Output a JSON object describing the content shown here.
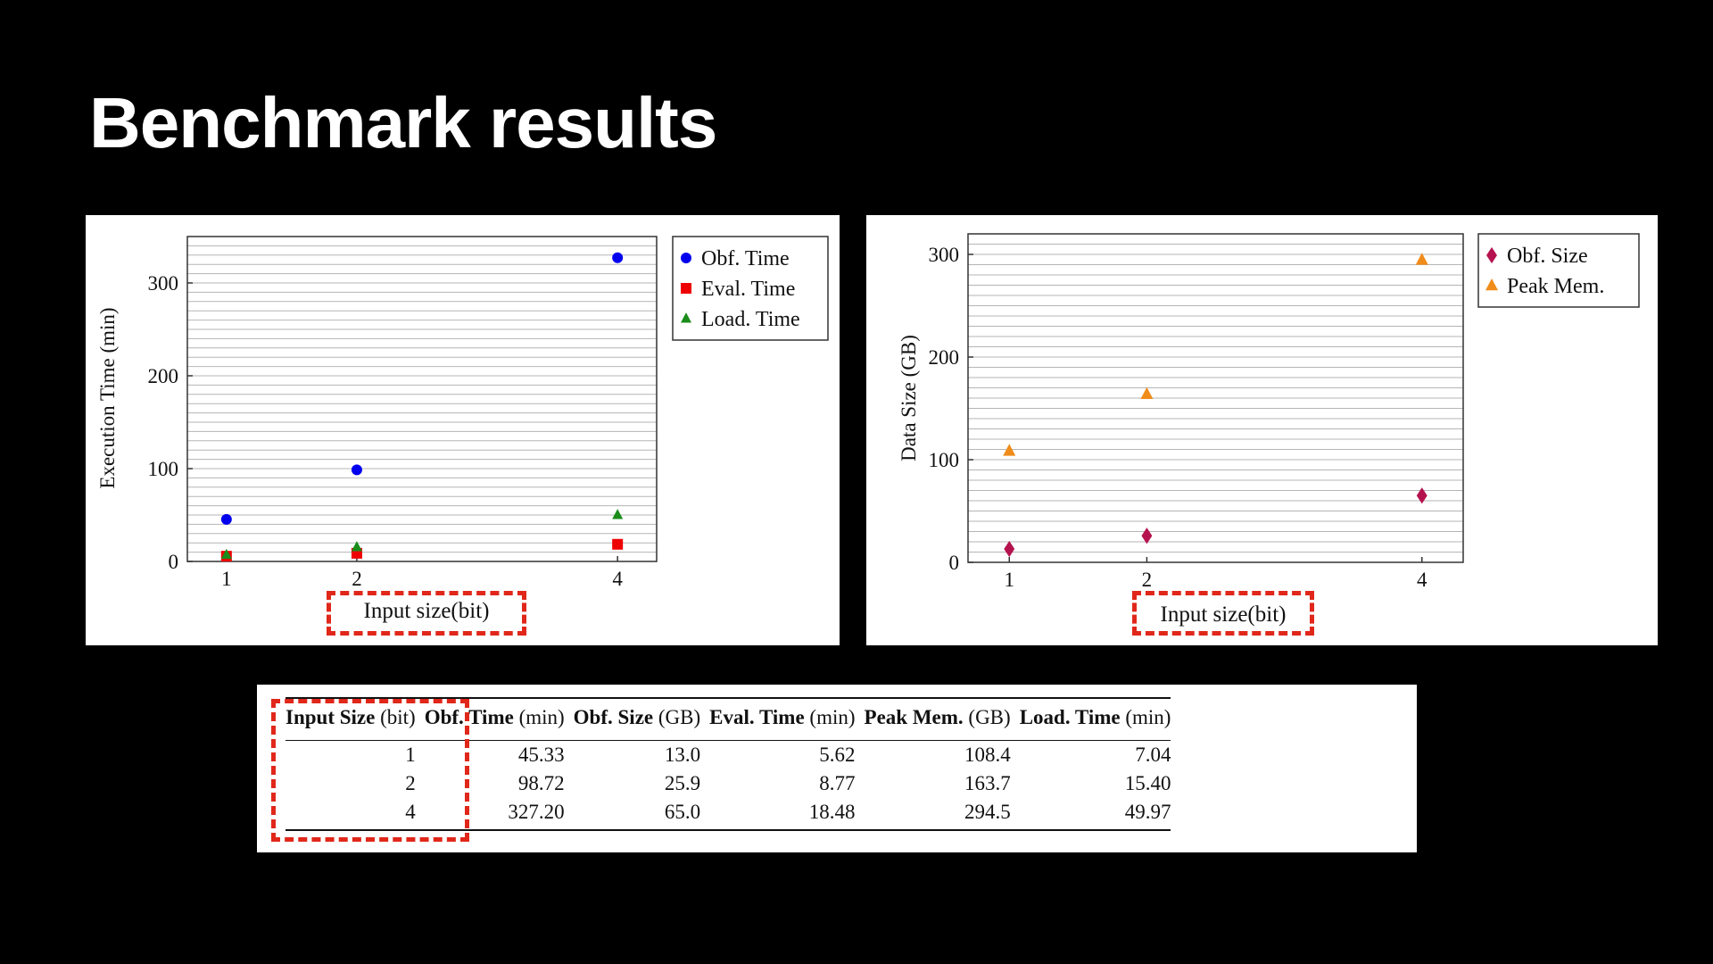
{
  "title": "Benchmark results",
  "chart_data": [
    {
      "type": "scatter",
      "ylabel": "Execution Time (min)",
      "xlabel": "Input size(bit)",
      "x": [
        1,
        2,
        4
      ],
      "xticks": [
        "1",
        "2",
        "4"
      ],
      "ylim": [
        0,
        350
      ],
      "yticks": [
        "0",
        "100",
        "200",
        "300"
      ],
      "grid": true,
      "legend_position": "right-top",
      "series": [
        {
          "name": "Obf. Time",
          "marker": "circle",
          "color": "#0000ee",
          "values": [
            45.33,
            98.72,
            327.2
          ]
        },
        {
          "name": "Eval. Time",
          "marker": "square",
          "color": "#ee0000",
          "values": [
            5.62,
            8.77,
            18.48
          ]
        },
        {
          "name": "Load. Time",
          "marker": "triangle",
          "color": "#1a8c1a",
          "values": [
            7.04,
            15.4,
            49.97
          ]
        }
      ]
    },
    {
      "type": "scatter",
      "ylabel": "Data Size (GB)",
      "xlabel": "Input size(bit)",
      "x": [
        1,
        2,
        4
      ],
      "xticks": [
        "1",
        "2",
        "4"
      ],
      "ylim": [
        0,
        320
      ],
      "yticks": [
        "0",
        "100",
        "200",
        "300"
      ],
      "grid": true,
      "legend_position": "right-top",
      "series": [
        {
          "name": "Obf. Size",
          "marker": "diamond",
          "color": "#b5134f",
          "values": [
            13.0,
            25.9,
            65.0
          ]
        },
        {
          "name": "Peak Mem.",
          "marker": "triangle",
          "color": "#f08c1a",
          "values": [
            108.4,
            163.7,
            294.5
          ]
        }
      ]
    }
  ],
  "table": {
    "headers": [
      {
        "bold": "Input Size",
        "unit": "(bit)"
      },
      {
        "bold": "Obf. Time",
        "unit": "(min)"
      },
      {
        "bold": "Obf. Size",
        "unit": "(GB)"
      },
      {
        "bold": "Eval. Time",
        "unit": "(min)"
      },
      {
        "bold": "Peak Mem.",
        "unit": "(GB)"
      },
      {
        "bold": "Load. Time",
        "unit": "(min)"
      }
    ],
    "rows": [
      [
        "1",
        "45.33",
        "13.0",
        "5.62",
        "108.4",
        "7.04"
      ],
      [
        "2",
        "98.72",
        "25.9",
        "8.77",
        "163.7",
        "15.40"
      ],
      [
        "4",
        "327.20",
        "65.0",
        "18.48",
        "294.5",
        "49.97"
      ]
    ]
  },
  "colors": {
    "highlight": "#e0271a",
    "background": "#000000"
  }
}
